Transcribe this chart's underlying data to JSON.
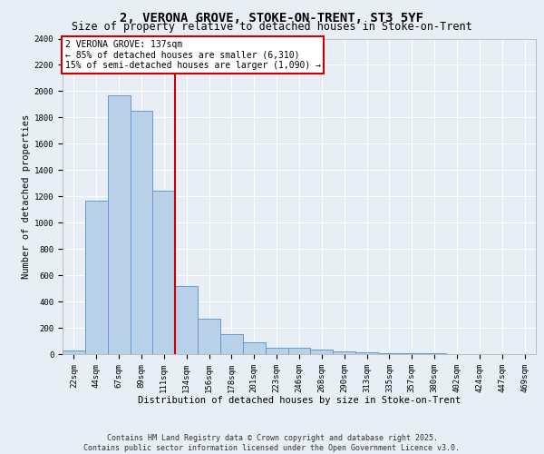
{
  "title_line1": "2, VERONA GROVE, STOKE-ON-TRENT, ST3 5YF",
  "title_line2": "Size of property relative to detached houses in Stoke-on-Trent",
  "xlabel": "Distribution of detached houses by size in Stoke-on-Trent",
  "ylabel": "Number of detached properties",
  "categories": [
    "22sqm",
    "44sqm",
    "67sqm",
    "89sqm",
    "111sqm",
    "134sqm",
    "156sqm",
    "178sqm",
    "201sqm",
    "223sqm",
    "246sqm",
    "268sqm",
    "290sqm",
    "313sqm",
    "335sqm",
    "357sqm",
    "380sqm",
    "402sqm",
    "424sqm",
    "447sqm",
    "469sqm"
  ],
  "values": [
    30,
    1170,
    1970,
    1850,
    1240,
    520,
    270,
    155,
    90,
    50,
    45,
    35,
    22,
    15,
    10,
    8,
    5,
    3,
    2,
    2,
    2
  ],
  "bar_color": "#b8d0e8",
  "bar_edge_color": "#6699cc",
  "vline_color": "#cc0000",
  "annotation_text": "2 VERONA GROVE: 137sqm\n← 85% of detached houses are smaller (6,310)\n15% of semi-detached houses are larger (1,090) →",
  "annotation_box_color": "#cc0000",
  "ylim": [
    0,
    2400
  ],
  "yticks": [
    0,
    200,
    400,
    600,
    800,
    1000,
    1200,
    1400,
    1600,
    1800,
    2000,
    2200,
    2400
  ],
  "background_color": "#e8eef5",
  "plot_bg_color": "#e8eef5",
  "grid_color": "#ffffff",
  "footer_text": "Contains HM Land Registry data © Crown copyright and database right 2025.\nContains public sector information licensed under the Open Government Licence v3.0.",
  "title_fontsize": 10,
  "subtitle_fontsize": 8.5,
  "axis_label_fontsize": 7.5,
  "tick_fontsize": 6.5,
  "annotation_fontsize": 7,
  "footer_fontsize": 6
}
